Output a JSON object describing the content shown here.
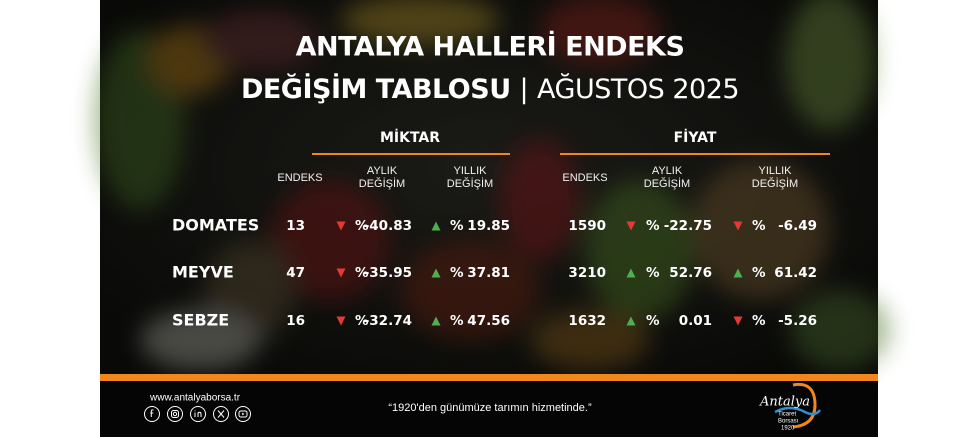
{
  "header": {
    "title_line1": "ANTALYA HALLERİ ENDEKS",
    "title_line2_bold": "DEĞİŞİM TABLOSU",
    "separator": "|",
    "title_line2_light": "AĞUSTOS 2025"
  },
  "table": {
    "percent_sign": "%",
    "groups": [
      {
        "label": "MİKTAR"
      },
      {
        "label": "FİYAT"
      }
    ],
    "columns": [
      [
        "ENDEKS"
      ],
      [
        "AYLIK",
        "DEĞİŞİM"
      ],
      [
        "YILLIK",
        "DEĞİŞİM"
      ]
    ],
    "rows": [
      {
        "name": "DOMATES",
        "miktar": [
          {
            "value": "13"
          },
          {
            "value": "-40.83",
            "trend": "down"
          },
          {
            "value": "19.85",
            "trend": "up"
          }
        ],
        "fiyat": [
          {
            "value": "1590"
          },
          {
            "value": "-22.75",
            "trend": "down"
          },
          {
            "value": "-6.49",
            "trend": "down"
          }
        ]
      },
      {
        "name": "MEYVE",
        "miktar": [
          {
            "value": "47"
          },
          {
            "value": "-35.95",
            "trend": "down"
          },
          {
            "value": "37.81",
            "trend": "up"
          }
        ],
        "fiyat": [
          {
            "value": "3210"
          },
          {
            "value": "52.76",
            "trend": "up"
          },
          {
            "value": "61.42",
            "trend": "up"
          }
        ]
      },
      {
        "name": "SEBZE",
        "miktar": [
          {
            "value": "16"
          },
          {
            "value": "-32.74",
            "trend": "down"
          },
          {
            "value": "47.56",
            "trend": "up"
          }
        ],
        "fiyat": [
          {
            "value": "1632"
          },
          {
            "value": "0.01",
            "trend": "up"
          },
          {
            "value": "-5.26",
            "trend": "down"
          }
        ]
      }
    ]
  },
  "footer": {
    "website": "www.antalyaborsa.tr",
    "quote": "“1920'den günümüze tarımın hizmetinde.”",
    "logo": {
      "name": "Antalya",
      "line1": "Ticaret",
      "line2": "Borsası",
      "year": "1920"
    }
  }
}
